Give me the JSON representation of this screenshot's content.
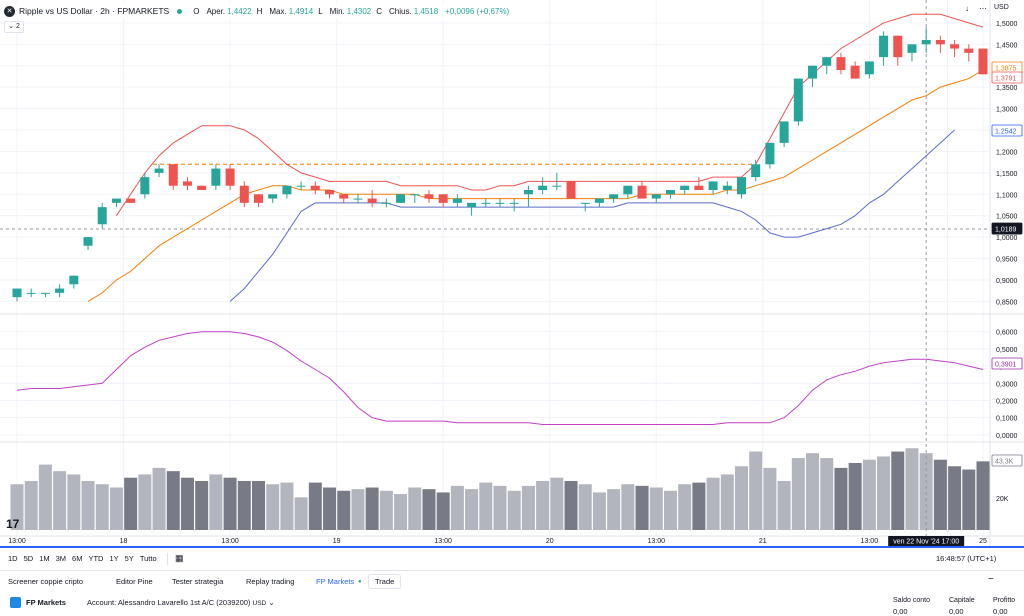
{
  "header": {
    "symbol_title": "Ripple vs US Dollar · 2h · FPMARKETS",
    "ohlc": [
      {
        "k": "O",
        "v": ""
      },
      {
        "k": "Aper.",
        "v": "1,4422"
      },
      {
        "k": "H",
        "v": ""
      },
      {
        "k": "Max.",
        "v": "1,4914"
      },
      {
        "k": "L",
        "v": ""
      },
      {
        "k": "Min.",
        "v": "1,4302"
      },
      {
        "k": "C",
        "v": ""
      },
      {
        "k": "Chius.",
        "v": "1,4518"
      },
      {
        "k": "",
        "v": "+0,0096 (+0,67%)"
      }
    ],
    "collapse_label": "⌄ 2",
    "currency": "USD"
  },
  "chart_data": {
    "type": "candlestick",
    "price_ticks": [
      "1,5000",
      "1,4500",
      "1,4000",
      "1,3500",
      "1,3000",
      "1,2500",
      "1,2000",
      "1,1500",
      "1,1000",
      "1,0500",
      "1,0000",
      "0,9500",
      "0,9000",
      "0,8500"
    ],
    "price_range": [
      0.83,
      1.53
    ],
    "price_labels": [
      {
        "text": "1,3875",
        "color": "#f57c00"
      },
      {
        "text": "1,3791",
        "color": "#ef5350"
      },
      {
        "text": "1,2542",
        "color": "#2962ff"
      },
      {
        "text": "1,0189",
        "color": "#131722"
      }
    ],
    "dashed_level": 1.17,
    "horizontal_line": 1.0189,
    "candles": [
      [
        0.86,
        0.88,
        0.85,
        0.88
      ],
      [
        0.87,
        0.88,
        0.86,
        0.87
      ],
      [
        0.87,
        0.87,
        0.86,
        0.87
      ],
      [
        0.87,
        0.89,
        0.86,
        0.88
      ],
      [
        0.89,
        0.91,
        0.88,
        0.91
      ],
      [
        0.98,
        1.0,
        0.97,
        1.0
      ],
      [
        1.03,
        1.08,
        1.02,
        1.07
      ],
      [
        1.08,
        1.09,
        1.07,
        1.09
      ],
      [
        1.09,
        1.09,
        1.08,
        1.08
      ],
      [
        1.1,
        1.15,
        1.09,
        1.14
      ],
      [
        1.15,
        1.17,
        1.14,
        1.16
      ],
      [
        1.17,
        1.17,
        1.11,
        1.12
      ],
      [
        1.13,
        1.14,
        1.11,
        1.12
      ],
      [
        1.12,
        1.12,
        1.11,
        1.11
      ],
      [
        1.12,
        1.17,
        1.11,
        1.16
      ],
      [
        1.16,
        1.17,
        1.11,
        1.12
      ],
      [
        1.12,
        1.13,
        1.07,
        1.08
      ],
      [
        1.1,
        1.1,
        1.07,
        1.08
      ],
      [
        1.09,
        1.1,
        1.08,
        1.1
      ],
      [
        1.1,
        1.12,
        1.09,
        1.12
      ],
      [
        1.12,
        1.13,
        1.11,
        1.12
      ],
      [
        1.12,
        1.13,
        1.1,
        1.11
      ],
      [
        1.11,
        1.11,
        1.09,
        1.1
      ],
      [
        1.1,
        1.1,
        1.08,
        1.09
      ],
      [
        1.09,
        1.1,
        1.08,
        1.09
      ],
      [
        1.09,
        1.11,
        1.07,
        1.08
      ],
      [
        1.08,
        1.09,
        1.07,
        1.08
      ],
      [
        1.08,
        1.1,
        1.08,
        1.1
      ],
      [
        1.1,
        1.1,
        1.08,
        1.1
      ],
      [
        1.1,
        1.11,
        1.08,
        1.09
      ],
      [
        1.1,
        1.1,
        1.07,
        1.08
      ],
      [
        1.08,
        1.1,
        1.07,
        1.09
      ],
      [
        1.07,
        1.08,
        1.05,
        1.08
      ],
      [
        1.08,
        1.09,
        1.07,
        1.08
      ],
      [
        1.08,
        1.09,
        1.07,
        1.08
      ],
      [
        1.08,
        1.09,
        1.06,
        1.08
      ],
      [
        1.1,
        1.12,
        1.07,
        1.11
      ],
      [
        1.11,
        1.14,
        1.1,
        1.12
      ],
      [
        1.12,
        1.15,
        1.11,
        1.12
      ],
      [
        1.13,
        1.13,
        1.09,
        1.09
      ],
      [
        1.08,
        1.08,
        1.06,
        1.08
      ],
      [
        1.08,
        1.09,
        1.07,
        1.09
      ],
      [
        1.09,
        1.1,
        1.08,
        1.1
      ],
      [
        1.1,
        1.12,
        1.09,
        1.12
      ],
      [
        1.12,
        1.13,
        1.09,
        1.09
      ],
      [
        1.09,
        1.1,
        1.08,
        1.1
      ],
      [
        1.1,
        1.11,
        1.09,
        1.11
      ],
      [
        1.11,
        1.12,
        1.1,
        1.12
      ],
      [
        1.12,
        1.14,
        1.11,
        1.11
      ],
      [
        1.11,
        1.13,
        1.1,
        1.13
      ],
      [
        1.11,
        1.13,
        1.1,
        1.12
      ],
      [
        1.1,
        1.14,
        1.09,
        1.14
      ],
      [
        1.14,
        1.18,
        1.13,
        1.17
      ],
      [
        1.17,
        1.22,
        1.16,
        1.22
      ],
      [
        1.22,
        1.27,
        1.21,
        1.27
      ],
      [
        1.27,
        1.37,
        1.26,
        1.37
      ],
      [
        1.37,
        1.4,
        1.35,
        1.4
      ],
      [
        1.4,
        1.42,
        1.38,
        1.42
      ],
      [
        1.42,
        1.43,
        1.38,
        1.39
      ],
      [
        1.4,
        1.41,
        1.37,
        1.37
      ],
      [
        1.38,
        1.41,
        1.37,
        1.41
      ],
      [
        1.42,
        1.48,
        1.4,
        1.47
      ],
      [
        1.47,
        1.47,
        1.4,
        1.42
      ],
      [
        1.43,
        1.45,
        1.41,
        1.45
      ],
      [
        1.45,
        1.49,
        1.43,
        1.46
      ],
      [
        1.46,
        1.47,
        1.43,
        1.45
      ],
      [
        1.45,
        1.46,
        1.42,
        1.44
      ],
      [
        1.44,
        1.45,
        1.41,
        1.43
      ],
      [
        1.44,
        1.44,
        1.38,
        1.38
      ]
    ],
    "bb_upper": [
      null,
      null,
      null,
      null,
      null,
      null,
      null,
      1.05,
      1.1,
      1.15,
      1.19,
      1.22,
      1.24,
      1.26,
      1.26,
      1.26,
      1.25,
      1.23,
      1.2,
      1.17,
      1.15,
      1.14,
      1.13,
      1.13,
      1.13,
      1.13,
      1.13,
      1.12,
      1.12,
      1.12,
      1.12,
      1.12,
      1.11,
      1.11,
      1.12,
      1.12,
      1.13,
      1.13,
      1.13,
      1.13,
      1.13,
      1.13,
      1.13,
      1.13,
      1.13,
      1.13,
      1.13,
      1.13,
      1.13,
      1.14,
      1.14,
      1.14,
      1.17,
      1.23,
      1.29,
      1.35,
      1.38,
      1.41,
      1.44,
      1.46,
      1.48,
      1.5,
      1.51,
      1.52,
      1.52,
      1.52,
      1.51,
      1.5,
      1.49
    ],
    "bb_mid": [
      null,
      null,
      null,
      null,
      null,
      0.85,
      0.87,
      0.9,
      0.92,
      0.95,
      0.98,
      1.0,
      1.02,
      1.04,
      1.06,
      1.08,
      1.1,
      1.11,
      1.12,
      1.12,
      1.11,
      1.11,
      1.11,
      1.1,
      1.1,
      1.1,
      1.1,
      1.1,
      1.1,
      1.09,
      1.09,
      1.09,
      1.09,
      1.09,
      1.09,
      1.09,
      1.09,
      1.09,
      1.09,
      1.09,
      1.09,
      1.09,
      1.09,
      1.09,
      1.1,
      1.1,
      1.1,
      1.1,
      1.1,
      1.1,
      1.11,
      1.11,
      1.12,
      1.13,
      1.14,
      1.16,
      1.18,
      1.2,
      1.22,
      1.24,
      1.26,
      1.28,
      1.3,
      1.32,
      1.33,
      1.35,
      1.36,
      1.37,
      1.39
    ],
    "bb_lower": [
      null,
      null,
      null,
      null,
      null,
      null,
      null,
      null,
      null,
      null,
      null,
      null,
      null,
      null,
      null,
      0.85,
      0.88,
      0.92,
      0.96,
      1.01,
      1.06,
      1.08,
      1.08,
      1.08,
      1.08,
      1.08,
      1.08,
      1.07,
      1.07,
      1.07,
      1.07,
      1.07,
      1.07,
      1.07,
      1.07,
      1.07,
      1.07,
      1.07,
      1.07,
      1.07,
      1.07,
      1.07,
      1.07,
      1.08,
      1.08,
      1.08,
      1.08,
      1.08,
      1.08,
      1.08,
      1.07,
      1.06,
      1.04,
      1.01,
      1.0,
      1.0,
      1.01,
      1.02,
      1.03,
      1.05,
      1.08,
      1.1,
      1.13,
      1.16,
      1.19,
      1.22,
      1.25
    ],
    "osc_ticks": [
      "0,6000",
      "0,5000",
      "0,4000",
      "0,3000",
      "0,2000",
      "0,1000",
      "0,0000"
    ],
    "osc_range": [
      -0.03,
      0.68
    ],
    "osc_label": {
      "text": "0,3901",
      "color": "#9c27b0"
    },
    "oscillator": [
      0.26,
      0.27,
      0.27,
      0.27,
      0.28,
      0.29,
      0.3,
      0.38,
      0.46,
      0.51,
      0.55,
      0.57,
      0.59,
      0.6,
      0.6,
      0.6,
      0.59,
      0.57,
      0.54,
      0.49,
      0.43,
      0.38,
      0.33,
      0.25,
      0.16,
      0.1,
      0.08,
      0.08,
      0.08,
      0.08,
      0.08,
      0.07,
      0.07,
      0.07,
      0.07,
      0.07,
      0.07,
      0.06,
      0.06,
      0.06,
      0.06,
      0.06,
      0.06,
      0.06,
      0.06,
      0.06,
      0.06,
      0.06,
      0.06,
      0.06,
      0.07,
      0.07,
      0.07,
      0.07,
      0.1,
      0.17,
      0.26,
      0.32,
      0.35,
      0.37,
      0.4,
      0.42,
      0.43,
      0.44,
      0.44,
      0.43,
      0.42,
      0.4,
      0.38
    ],
    "vol_label": "43,3K",
    "vol_tick": "20K",
    "volumes": [
      28,
      30,
      40,
      36,
      34,
      30,
      28,
      26,
      32,
      34,
      38,
      36,
      32,
      30,
      34,
      32,
      30,
      30,
      28,
      29,
      20,
      29,
      26,
      24,
      25,
      26,
      24,
      22,
      26,
      25,
      23,
      27,
      25,
      29,
      27,
      24,
      27,
      30,
      32,
      30,
      28,
      23,
      25,
      28,
      27,
      26,
      24,
      28,
      29,
      32,
      34,
      39,
      48,
      38,
      30,
      44,
      47,
      44,
      38,
      41,
      43,
      45,
      48,
      50,
      47,
      43,
      39,
      37,
      42
    ],
    "x_ticks": [
      "13:00",
      "18",
      "13:00",
      "19",
      "13:00",
      "20",
      "13:00",
      "21",
      "13:00",
      "22",
      "25"
    ],
    "crosshair_time": "ven 22 Nov '24   17:00"
  },
  "toolbar": {
    "ranges": [
      "1D",
      "5D",
      "1M",
      "3M",
      "6M",
      "YTD",
      "1Y",
      "5Y",
      "Tutto"
    ],
    "clock": "16:48:57 (UTC+1)"
  },
  "bottom_tabs": {
    "items": [
      "Screener coppie cripto",
      "Editor Pine",
      "Tester strategia",
      "Replay trading",
      "FP Markets"
    ],
    "trade": "Trade"
  },
  "account": {
    "broker": "FP Markets",
    "account_label": "Account: Alessandro Lavarello 1st A/C (2039200)",
    "currency": "USD",
    "stats": [
      {
        "label": "Saldo conto",
        "value": "0,00"
      },
      {
        "label": "Capitale",
        "value": "0,00"
      },
      {
        "label": "Profitto",
        "value": "0,00"
      }
    ]
  }
}
